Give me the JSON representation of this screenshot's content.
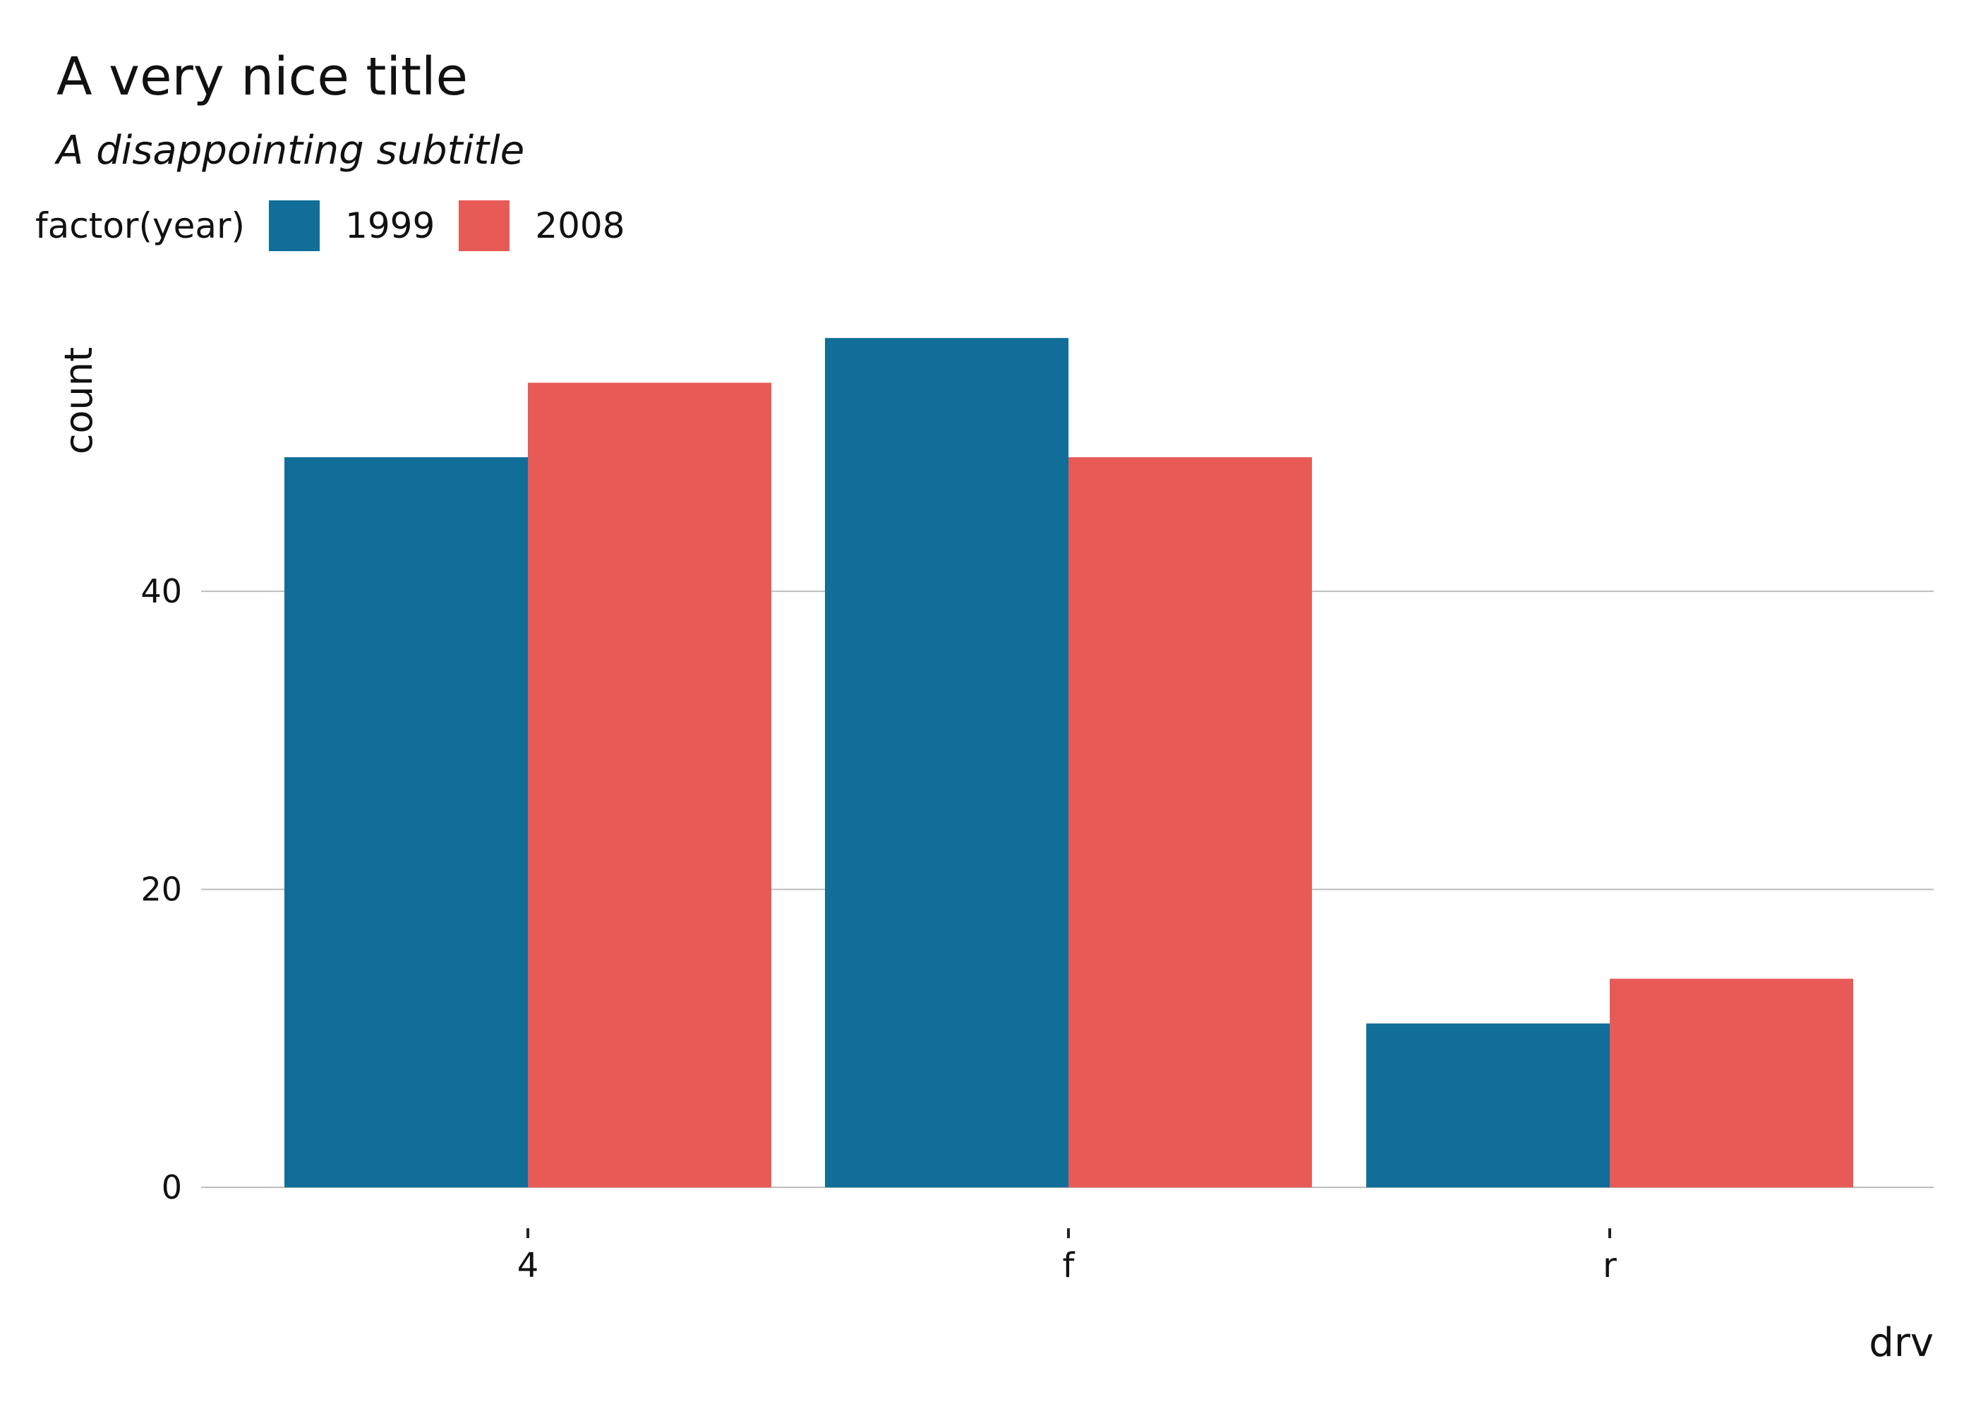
{
  "chart_data": {
    "type": "bar",
    "title": "A very nice title",
    "subtitle": "A disappointing subtitle",
    "xlabel": "drv",
    "ylabel": "count",
    "categories": [
      "4",
      "f",
      "r"
    ],
    "series": [
      {
        "name": "1999",
        "color": "#106E98",
        "values": [
          49,
          57,
          11
        ]
      },
      {
        "name": "2008",
        "color": "#E85A56",
        "values": [
          54,
          49,
          14
        ]
      }
    ],
    "ylim": [
      0,
      58
    ],
    "yticks": [
      0,
      20,
      40
    ],
    "legend_title": "factor(year)",
    "legend_position": "top-left",
    "grid": "horizontal major lines only",
    "grid_color": "#BEBEBE"
  }
}
